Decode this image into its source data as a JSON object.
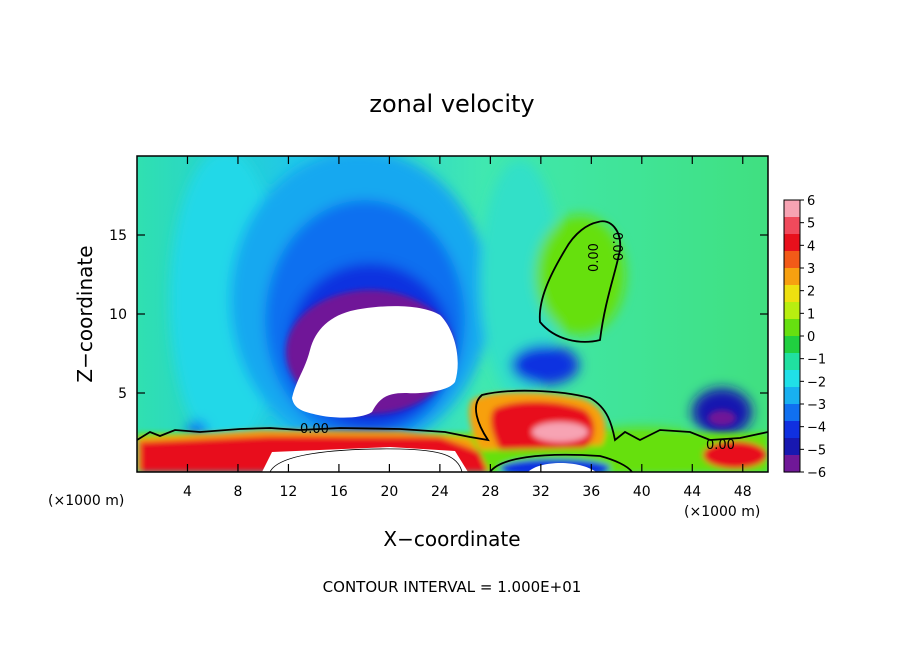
{
  "chart_data": {
    "type": "contour-filled",
    "title": "zonal velocity",
    "xlabel": "X−coordinate",
    "ylabel": "Z−coordinate",
    "x_unit_left": "(×1000 m)",
    "x_unit_right": "(×1000 m)",
    "xlim": [
      0,
      50
    ],
    "ylim": [
      0,
      20
    ],
    "x_ticks": [
      4,
      8,
      12,
      16,
      20,
      24,
      28,
      32,
      36,
      40,
      44,
      48
    ],
    "y_ticks": [
      5,
      10,
      15
    ],
    "colorbar": {
      "ticks": [
        "6",
        "5",
        "4",
        "3",
        "2",
        "1",
        "0",
        "−1",
        "−2",
        "−3",
        "−4",
        "−5",
        "−6"
      ],
      "range": [
        -6,
        6
      ],
      "colors": [
        "#f7a3b3",
        "#f04a5c",
        "#e8101c",
        "#f25a18",
        "#f7a010",
        "#eee010",
        "#b8ee10",
        "#66e010",
        "#20d040",
        "#20e0a0",
        "#20e0e8",
        "#18b0f0",
        "#1070f0",
        "#1030e0",
        "#1818b0",
        "#701898"
      ]
    },
    "contour_labels": [
      "0.00",
      "0.00",
      "0.00",
      "0.00"
    ],
    "footer": "CONTOUR INTERVAL = 1.000E+01",
    "background_color": "#40e080"
  }
}
